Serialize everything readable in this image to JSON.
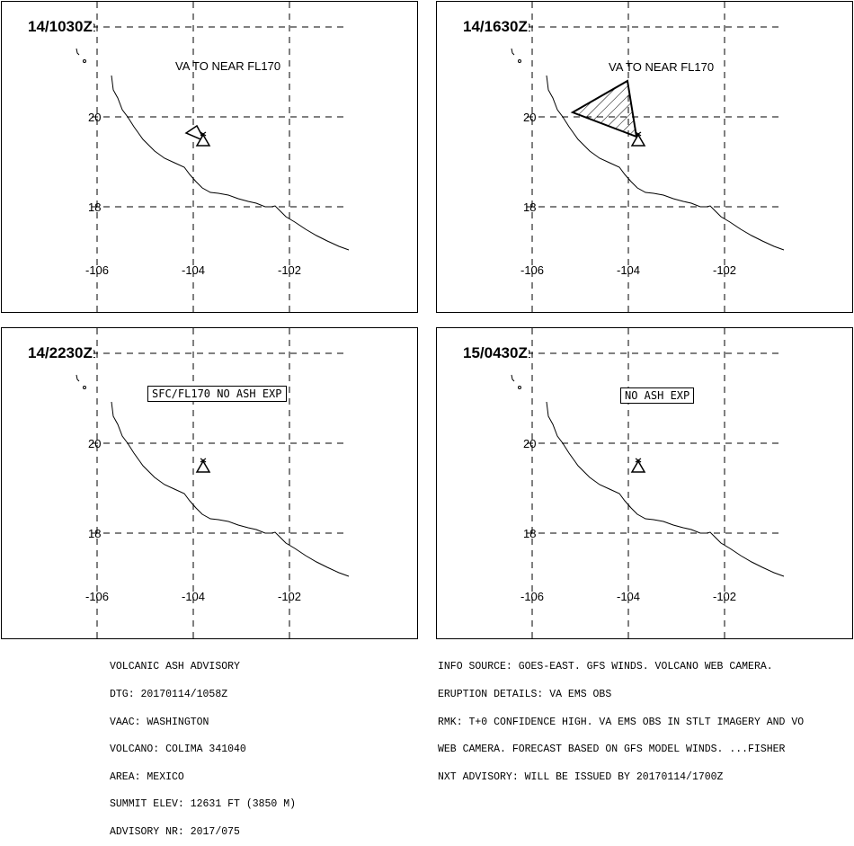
{
  "panels": [
    {
      "time": "14/1030Z",
      "note": "VA TO NEAR FL170",
      "note_boxed": false,
      "ash_polygon": "small"
    },
    {
      "time": "14/1630Z",
      "note": "VA TO NEAR FL170",
      "note_boxed": false,
      "ash_polygon": "large"
    },
    {
      "time": "14/2230Z",
      "note": "SFC/FL170 NO ASH EXP",
      "note_boxed": true,
      "ash_polygon": "none"
    },
    {
      "time": "15/0430Z",
      "note": "NO ASH EXP",
      "note_boxed": true,
      "ash_polygon": "none"
    }
  ],
  "map": {
    "lat_labels": [
      "20",
      "18"
    ],
    "lon_labels": [
      "-106",
      "-104",
      "-102"
    ],
    "top_lat_label": "22",
    "volcano_symbol": "volcano-triangle-icon"
  },
  "footer": {
    "left_lines": [
      "VOLCANIC ASH ADVISORY",
      "DTG: 20170114/1058Z",
      "VAAC: WASHINGTON",
      "VOLCANO: COLIMA 341040",
      "AREA: MEXICO",
      "SUMMIT ELEV: 12631 FT (3850 M)",
      "ADVISORY NR: 2017/075"
    ],
    "right_lines": [
      "INFO SOURCE: GOES-EAST. GFS WINDS. VOLCANO WEB CAMERA.",
      "ERUPTION DETAILS: VA EMS OBS",
      "RMK: T+0 CONFIDENCE HIGH. VA EMS OBS IN STLT IMAGERY AND VO",
      "WEB CAMERA. FORECAST BASED ON GFS MODEL WINDS. ...FISHER",
      "NXT ADVISORY: WILL BE ISSUED BY 20170114/1700Z"
    ]
  }
}
